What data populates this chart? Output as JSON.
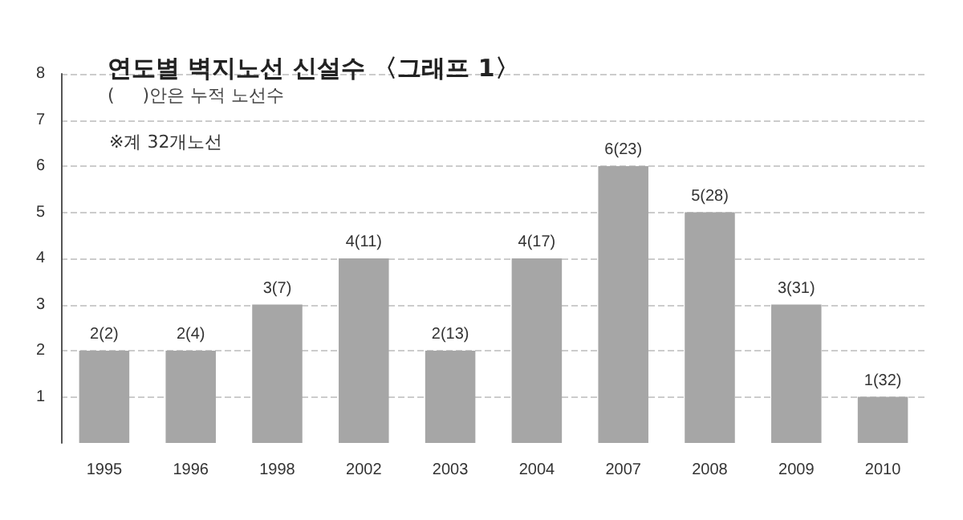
{
  "chart_data": {
    "type": "bar",
    "title": "연도별 벽지노선 신설수 〈그래프 1〉",
    "subtitle": "(     )안은 누적 노선수",
    "annotations": [
      "※계 32개노선"
    ],
    "categories": [
      "1995",
      "1996",
      "1998",
      "2002",
      "2003",
      "2004",
      "2007",
      "2008",
      "2009",
      "2010"
    ],
    "values": [
      2,
      2,
      3,
      4,
      2,
      4,
      6,
      5,
      3,
      1
    ],
    "value_labels": [
      "2(2)",
      "2(4)",
      "3(7)",
      "4(11)",
      "2(13)",
      "4(17)",
      "6(23)",
      "5(28)",
      "3(31)",
      "1(32)"
    ],
    "color": "#a6a6a6",
    "ylim": [
      0,
      8
    ],
    "yticks": [
      1,
      2,
      3,
      4,
      5,
      6,
      7,
      8
    ],
    "grid": "y"
  }
}
